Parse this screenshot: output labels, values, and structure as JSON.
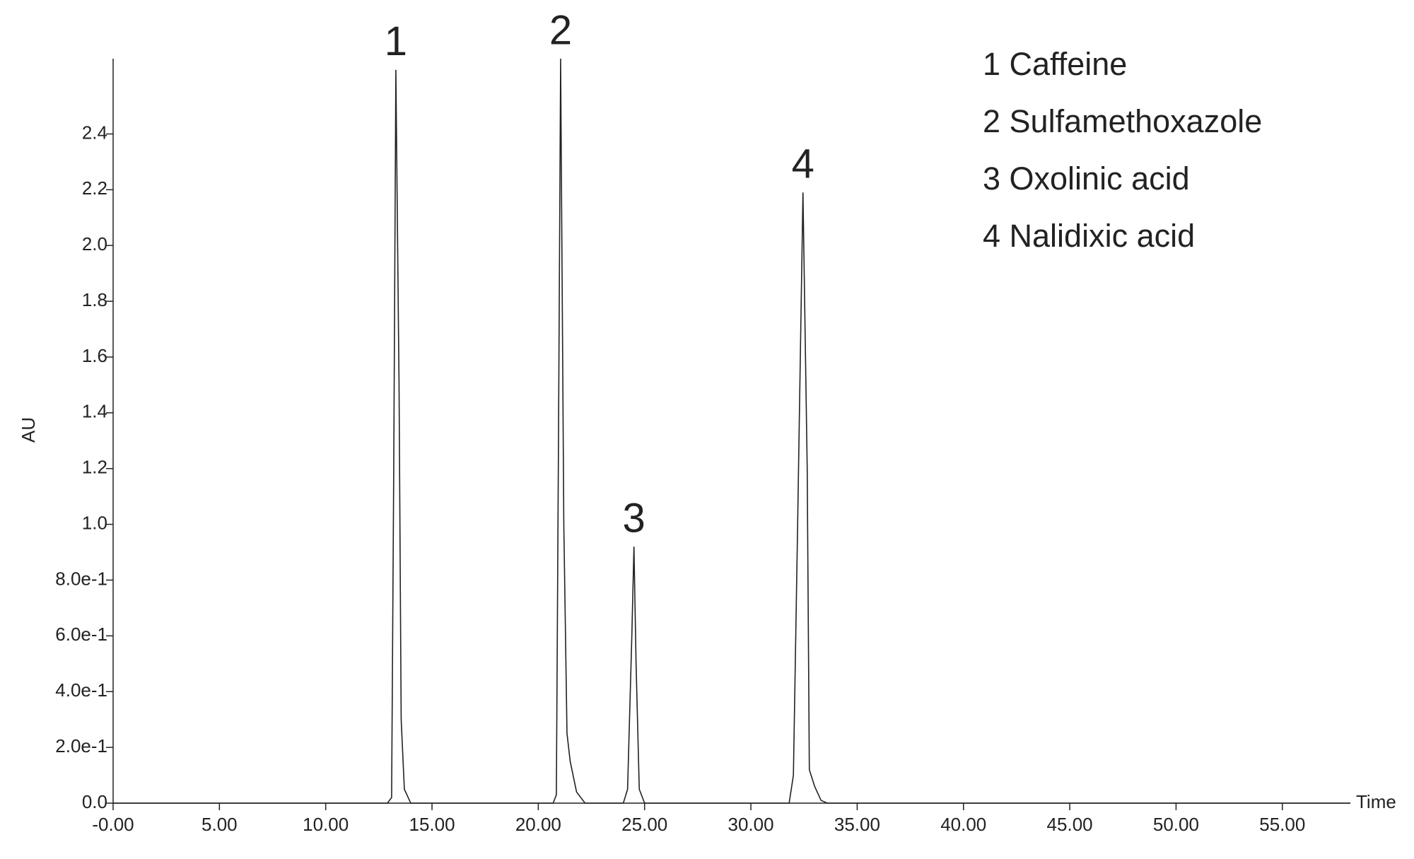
{
  "chart_data": {
    "type": "line",
    "ylabel": "AU",
    "xlabel": "Time",
    "x": [
      0,
      5,
      10,
      12.9,
      13.1,
      13.2,
      13.3,
      13.45,
      13.55,
      13.7,
      14.0,
      20.7,
      20.85,
      20.95,
      21.05,
      21.2,
      21.35,
      21.5,
      21.8,
      22.2,
      24.0,
      24.2,
      24.4,
      24.5,
      24.6,
      24.75,
      25.0,
      31.8,
      32.0,
      32.2,
      32.45,
      32.65,
      32.75,
      33.0,
      33.3,
      33.6,
      40,
      50,
      58.2
    ],
    "series": [
      {
        "color": "#222222",
        "values": [
          0,
          0,
          0,
          0,
          0.02,
          1.2,
          2.63,
          1.5,
          0.3,
          0.05,
          0,
          0,
          0.03,
          1.3,
          2.67,
          1.0,
          0.25,
          0.15,
          0.04,
          0,
          0,
          0.05,
          0.6,
          0.92,
          0.5,
          0.05,
          0,
          0,
          0.1,
          1.0,
          2.19,
          1.2,
          0.12,
          0.06,
          0.01,
          0,
          0,
          0,
          0
        ]
      }
    ],
    "xlim": [
      0,
      58.2
    ],
    "ylim": [
      0,
      2.67
    ],
    "xticks": [
      {
        "value": 0,
        "label": "-0.00"
      },
      {
        "value": 5,
        "label": "5.00"
      },
      {
        "value": 10,
        "label": "10.00"
      },
      {
        "value": 15,
        "label": "15.00"
      },
      {
        "value": 20,
        "label": "20.00"
      },
      {
        "value": 25,
        "label": "25.00"
      },
      {
        "value": 30,
        "label": "30.00"
      },
      {
        "value": 35,
        "label": "35.00"
      },
      {
        "value": 40,
        "label": "40.00"
      },
      {
        "value": 45,
        "label": "45.00"
      },
      {
        "value": 50,
        "label": "50.00"
      },
      {
        "value": 55,
        "label": "55.00"
      }
    ],
    "yticks": [
      {
        "value": 0,
        "label": "0.0"
      },
      {
        "value": 0.2,
        "label": "2.0e-1"
      },
      {
        "value": 0.4,
        "label": "4.0e-1"
      },
      {
        "value": 0.6,
        "label": "6.0e-1"
      },
      {
        "value": 0.8,
        "label": "8.0e-1"
      },
      {
        "value": 1.0,
        "label": "1.0"
      },
      1.2,
      1.4,
      1.6,
      1.8,
      {
        "value": 2.0,
        "label": "2.0"
      },
      2.2,
      2.4
    ],
    "peak_labels": [
      {
        "text": "1",
        "x": 13.3,
        "y": 2.63
      },
      {
        "text": "2",
        "x": 21.05,
        "y": 2.67
      },
      {
        "text": "3",
        "x": 24.5,
        "y": 0.92
      },
      {
        "text": "4",
        "x": 32.45,
        "y": 2.19
      }
    ],
    "legend_text": [
      "1 Caffeine",
      "2 Sulfamethoxazole",
      "3 Oxolinic acid",
      "4 Nalidixic acid"
    ]
  }
}
